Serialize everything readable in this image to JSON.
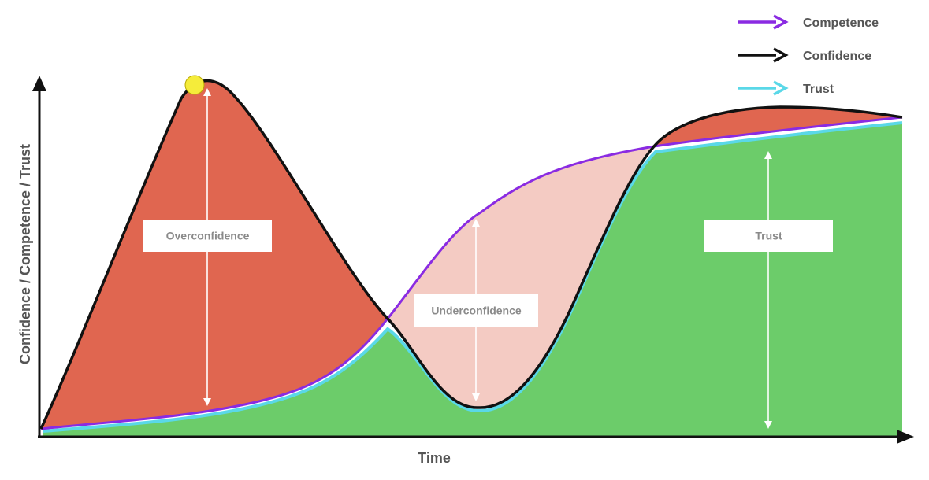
{
  "chart_data": {
    "type": "area",
    "xlabel": "Time",
    "ylabel": "Confidence / Competence / Trust",
    "legend_position": "top-right",
    "series": [
      {
        "name": "Competence",
        "color": "#8a2be2",
        "shape": "rising s-curve"
      },
      {
        "name": "Confidence",
        "color": "#111111",
        "shape": "early peak, dip, then rise"
      },
      {
        "name": "Trust",
        "color": "#5ad8e8",
        "shape": "follows lower of confidence and competence"
      }
    ],
    "regions": [
      {
        "label": "Overconfidence",
        "color": "#e06650"
      },
      {
        "label": "Underconfidence",
        "color": "#f4cbc3"
      },
      {
        "label": "Trust",
        "color": "#6ccc6a"
      }
    ],
    "peak_marker": {
      "color": "#f5ec3a"
    }
  }
}
